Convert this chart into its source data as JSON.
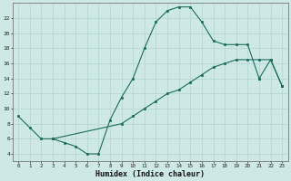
{
  "xlabel": "Humidex (Indice chaleur)",
  "xlim": [
    -0.5,
    23.5
  ],
  "ylim": [
    3,
    24
  ],
  "xticks": [
    0,
    1,
    2,
    3,
    4,
    5,
    6,
    7,
    8,
    9,
    10,
    11,
    12,
    13,
    14,
    15,
    16,
    17,
    18,
    19,
    20,
    21,
    22,
    23
  ],
  "yticks": [
    4,
    6,
    8,
    10,
    12,
    14,
    16,
    18,
    20,
    22
  ],
  "bg_color": "#cee9e5",
  "line_color": "#1a6b5e",
  "grid_major_color": "#b0d4ce",
  "grid_minor_color": "#daf0ed",
  "line1_x": [
    0,
    1,
    2,
    3,
    4,
    5,
    6,
    7,
    8,
    9,
    10,
    11,
    12,
    13,
    14,
    15,
    16,
    17,
    18,
    19,
    20,
    21
  ],
  "line1_y": [
    9.0,
    7.5,
    6.0,
    6.0,
    5.5,
    5.0,
    4.0,
    4.0,
    8.5,
    11.5,
    14.0,
    18.0,
    21.5,
    23.0,
    23.5,
    23.5,
    21.5,
    19.0,
    18.5,
    18.5,
    18.5,
    14.0
  ],
  "line2_x": [
    3,
    9,
    10,
    11,
    12,
    13,
    14,
    15,
    16,
    17,
    18,
    19,
    20,
    21,
    22,
    23
  ],
  "line2_y": [
    6.0,
    8.0,
    9.0,
    10.0,
    11.0,
    12.0,
    12.5,
    13.5,
    14.5,
    15.5,
    16.0,
    16.5,
    16.5,
    16.5,
    16.5,
    13.0
  ],
  "line3_x": [
    21,
    22,
    23
  ],
  "line3_y": [
    14.0,
    16.5,
    13.0
  ]
}
